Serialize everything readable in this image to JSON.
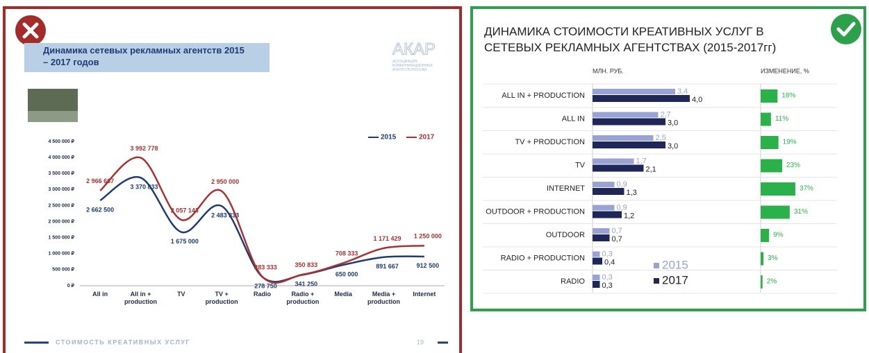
{
  "chart_data": [
    {
      "type": "line",
      "title": "Динамика сетевых рекламных агентств 2015 – 2017 годов",
      "logo": "АКАР",
      "logo_subtitle": "АССОЦИАЦИЯ КОММУНИКАЦИОННЫХ АГЕНТСТВ РОССИИ",
      "footer": "СТОИМОСТЬ КРЕАТИВНЫХ УСЛУГ",
      "page_number": "19",
      "categories": [
        "All in",
        "All in + production",
        "TV",
        "TV + production",
        "Radio",
        "Radio + production",
        "Media",
        "Media + production",
        "Internet"
      ],
      "series": [
        {
          "name": "2015",
          "color": "#1f3b73",
          "values": [
            2662500,
            3370833,
            1675000,
            2483333,
            278750,
            341250,
            650000,
            891667,
            912500
          ],
          "value_labels": [
            "2 662 500",
            "3 370 833",
            "1 675 000",
            "2 483 333",
            "278 750",
            "341 250",
            "650 000",
            "891 667",
            "912 500"
          ]
        },
        {
          "name": "2017",
          "color": "#a83232",
          "values": [
            2966667,
            3992778,
            2057143,
            2950000,
            283333,
            350833,
            708333,
            1171429,
            1250000
          ],
          "value_labels": [
            "2 966 667",
            "3 992 778",
            "2 057 143",
            "2 950 000",
            "283 333",
            "350 833",
            "708 333",
            "1 171 429",
            "1 250 000"
          ]
        }
      ],
      "ylim": [
        0,
        4500000
      ],
      "yticks": [
        {
          "value": 0,
          "label": "0 ₽"
        },
        {
          "value": 500000,
          "label": "500 000 ₽"
        },
        {
          "value": 1000000,
          "label": "1 000 000 ₽"
        },
        {
          "value": 1500000,
          "label": "1 500 000 ₽"
        },
        {
          "value": 2000000,
          "label": "2 000 000 ₽"
        },
        {
          "value": 2500000,
          "label": "2 500 000 ₽"
        },
        {
          "value": 3000000,
          "label": "3 000 000 ₽"
        },
        {
          "value": 3500000,
          "label": "3 500 000 ₽"
        },
        {
          "value": 4000000,
          "label": "4 000 000 ₽"
        },
        {
          "value": 4500000,
          "label": "4 500 000 ₽"
        }
      ],
      "grid": false,
      "legend": "top-right"
    },
    {
      "type": "bar",
      "orientation": "horizontal",
      "title": "ДИНАМИКА СТОИМОСТИ КРЕАТИВНЫХ УСЛУГ В СЕТЕВЫХ РЕКЛАМНЫХ АГЕНТСТВАХ (2015-2017гг)",
      "value_header": "МЛН. РУБ.",
      "change_header": "ИЗМЕНЕНИЕ, %",
      "categories": [
        "ALL IN + PRODUCTION",
        "ALL IN",
        "TV + PRODUCTION",
        "TV",
        "INTERNET",
        "OUTDOOR + PRODUCTION",
        "OUTDOOR",
        "RADIO + PRODUCTION",
        "RADIO"
      ],
      "series": [
        {
          "name": "2015",
          "color": "#98a3d3",
          "values": [
            3.4,
            2.7,
            2.5,
            1.7,
            0.9,
            0.9,
            0.7,
            0.3,
            0.3
          ],
          "value_labels": [
            "3,4",
            "2,7",
            "2,5",
            "1,7",
            "0,9",
            "0,9",
            "0,7",
            "0,3",
            "0,3"
          ]
        },
        {
          "name": "2017",
          "color": "#1e2757",
          "values": [
            4.0,
            3.0,
            3.0,
            2.1,
            1.3,
            1.2,
            0.7,
            0.4,
            0.3
          ],
          "value_labels": [
            "4,0",
            "3,0",
            "3,0",
            "2,1",
            "1,3",
            "1,2",
            "0,7",
            "0,4",
            "0,3"
          ]
        }
      ],
      "change": {
        "color": "#2bb14a",
        "values": [
          18,
          11,
          19,
          23,
          37,
          31,
          9,
          3,
          2
        ],
        "value_labels": [
          "18%",
          "11%",
          "19%",
          "23%",
          "37%",
          "31%",
          "9%",
          "3%",
          "2%"
        ]
      },
      "legend": "bottom-center"
    }
  ]
}
